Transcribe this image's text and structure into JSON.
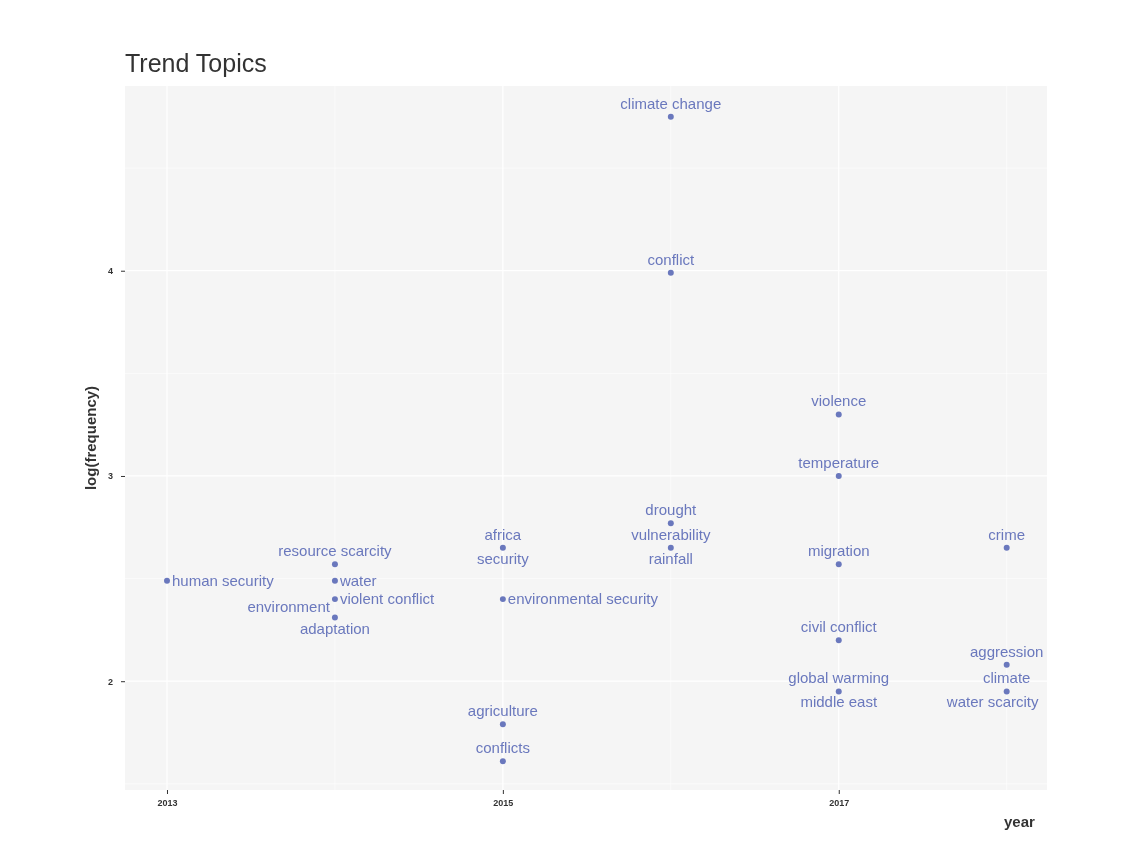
{
  "chart_data": {
    "type": "scatter",
    "title": "Trend Topics",
    "xlabel": "year",
    "ylabel": "log(frequency)",
    "xlim": [
      2012.75,
      2018.24
    ],
    "ylim": [
      1.47,
      4.9
    ],
    "xticks": [
      2013,
      2015,
      2017
    ],
    "yticks": [
      2,
      3,
      4
    ],
    "grid": true,
    "marker": "circle",
    "series": [
      {
        "color": "#6a78bd",
        "x": [
          2016,
          2016,
          2017,
          2017,
          2016,
          2016,
          2015,
          2018,
          2017,
          2014,
          2014,
          2013,
          2014,
          2014,
          2015,
          2017,
          2018,
          2018,
          2017,
          2015,
          2015
        ],
        "values": [
          4.75,
          3.99,
          3.3,
          3.0,
          2.77,
          2.65,
          2.65,
          2.65,
          2.57,
          2.57,
          2.49,
          2.49,
          2.4,
          2.31,
          2.4,
          2.2,
          2.08,
          1.95,
          1.95,
          1.79,
          1.61
        ]
      }
    ],
    "annotations": [
      {
        "text": "climate change",
        "x": 2016,
        "y": 4.75
      },
      {
        "text": "conflict",
        "x": 2016,
        "y": 3.99
      },
      {
        "text": "violence",
        "x": 2017,
        "y": 3.3
      },
      {
        "text": "temperature",
        "x": 2017,
        "y": 3.0
      },
      {
        "text": "drought",
        "x": 2016,
        "y": 2.77
      },
      {
        "text": "vulnerability",
        "x": 2016,
        "y": 2.65
      },
      {
        "text": "rainfall",
        "x": 2016,
        "y": 2.65
      },
      {
        "text": "africa",
        "x": 2015,
        "y": 2.65
      },
      {
        "text": "security",
        "x": 2015,
        "y": 2.65
      },
      {
        "text": "crime",
        "x": 2018,
        "y": 2.65
      },
      {
        "text": "migration",
        "x": 2017,
        "y": 2.57
      },
      {
        "text": "resource scarcity",
        "x": 2014,
        "y": 2.57
      },
      {
        "text": "water",
        "x": 2014,
        "y": 2.49
      },
      {
        "text": "human security",
        "x": 2013,
        "y": 2.49
      },
      {
        "text": "violent conflict",
        "x": 2014,
        "y": 2.4
      },
      {
        "text": "adaptation",
        "x": 2014,
        "y": 2.31
      },
      {
        "text": "environment",
        "x": 2014,
        "y": 2.31
      },
      {
        "text": "environmental security",
        "x": 2015,
        "y": 2.4
      },
      {
        "text": "civil conflict",
        "x": 2017,
        "y": 2.2
      },
      {
        "text": "aggression",
        "x": 2018,
        "y": 2.08
      },
      {
        "text": "climate",
        "x": 2018,
        "y": 1.95
      },
      {
        "text": "global warming",
        "x": 2017,
        "y": 1.95
      },
      {
        "text": "middle east",
        "x": 2017,
        "y": 1.95
      },
      {
        "text": "water scarcity",
        "x": 2018,
        "y": 1.95
      },
      {
        "text": "agriculture",
        "x": 2015,
        "y": 1.79
      },
      {
        "text": "conflicts",
        "x": 2015,
        "y": 1.61
      }
    ]
  }
}
